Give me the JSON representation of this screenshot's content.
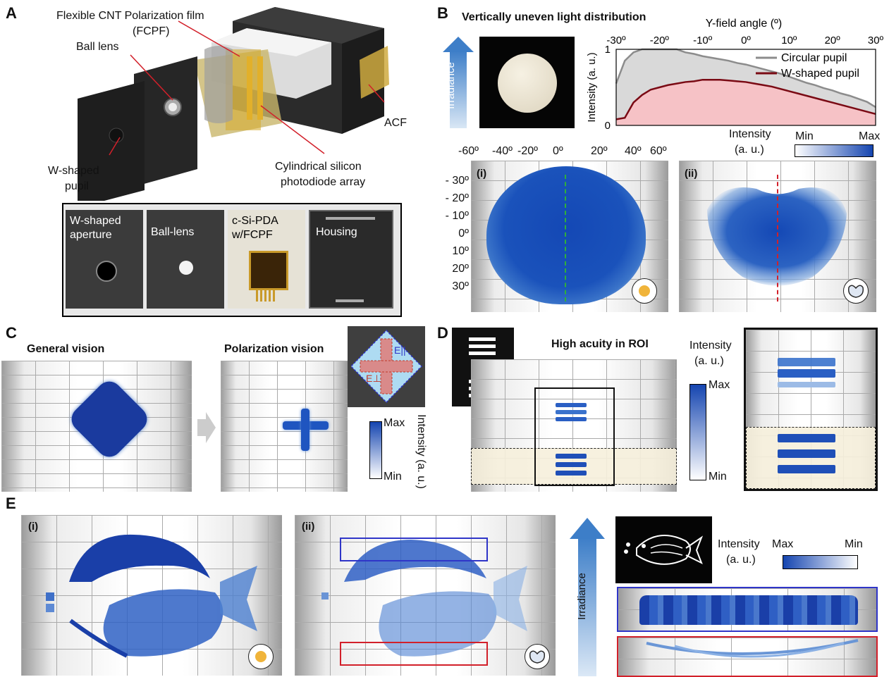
{
  "panels": {
    "A": "A",
    "B": "B",
    "C": "C",
    "D": "D",
    "E": "E"
  },
  "a": {
    "fcpf_label": "Flexible CNT Polarization film",
    "fcpf_abbr": "(FCPF)",
    "ball_lens": "Ball lens",
    "acf": "ACF",
    "pupil_line1": "W-shaped",
    "pupil_line2": "pupil",
    "pda_line1": "Cylindrical silicon",
    "pda_line2": "photodiode array",
    "photos": {
      "aperture_line1": "W-shaped",
      "aperture_line2": "aperture",
      "ball_lens": "Ball-lens",
      "pda_line1": "c-Si-PDA",
      "pda_line2": "w/FCPF",
      "housing": "Housing"
    }
  },
  "b": {
    "title": "Vertically uneven light distribution",
    "irradiance": "Irradiance",
    "intensity_label": "Intensity (a. u.)",
    "colorbar_label_line1": "Intensity",
    "colorbar_label_line2": "(a. u.)",
    "colorbar_min": "Min",
    "colorbar_max": "Max",
    "map_x_ticks": [
      "-60º",
      "-40º",
      "-20º",
      "0º",
      "20º",
      "40º",
      "60º"
    ],
    "map_y_ticks": [
      "- 30º",
      "- 20º",
      "- 10º",
      "0º",
      "10º",
      "20º",
      "30º"
    ],
    "sub_i": "(i)",
    "sub_ii": "(ii)",
    "chart_data": {
      "type": "area",
      "xlabel": "Y-field angle (º)",
      "ylabel": "Intensity (a. u.)",
      "xlim": [
        -30,
        30
      ],
      "ylim": [
        0,
        1
      ],
      "x_ticks": [
        "-30º",
        "-20º",
        "-10º",
        "0º",
        "10º",
        "20º",
        "30º"
      ],
      "y_ticks": [
        "0",
        "1"
      ],
      "x": [
        -30,
        -28,
        -26,
        -24,
        -22,
        -20,
        -18,
        -16,
        -14,
        -12,
        -10,
        -8,
        -6,
        -4,
        -2,
        0,
        2,
        4,
        6,
        8,
        10,
        12,
        14,
        16,
        18,
        20,
        22,
        24,
        26,
        28,
        30
      ],
      "series": [
        {
          "name": "Circular pupil",
          "color": "#8c8c8c",
          "fill": "#d9d9d9",
          "values": [
            0.55,
            0.85,
            0.96,
            1.0,
            1.0,
            1.0,
            1.0,
            1.0,
            0.96,
            0.94,
            0.91,
            0.89,
            0.87,
            0.85,
            0.82,
            0.8,
            0.77,
            0.74,
            0.71,
            0.68,
            0.64,
            0.6,
            0.56,
            0.53,
            0.49,
            0.46,
            0.42,
            0.39,
            0.35,
            0.31,
            0.24
          ]
        },
        {
          "name": "W-shaped pupil",
          "color": "#7a0a14",
          "fill": "#f6c2c6",
          "values": [
            0.08,
            0.1,
            0.3,
            0.4,
            0.47,
            0.5,
            0.53,
            0.55,
            0.57,
            0.58,
            0.6,
            0.6,
            0.6,
            0.59,
            0.58,
            0.57,
            0.55,
            0.53,
            0.51,
            0.48,
            0.45,
            0.42,
            0.39,
            0.36,
            0.33,
            0.3,
            0.27,
            0.24,
            0.21,
            0.18,
            0.15
          ]
        }
      ],
      "legend": "top-right"
    }
  },
  "c": {
    "general": "General vision",
    "polarization": "Polarization vision",
    "e_parallel": "E||",
    "e_perp": "E⊥",
    "colorbar_max": "Max",
    "colorbar_min": "Min",
    "colorbar_label": "Intensity (a. u.)"
  },
  "d": {
    "title": "High acuity in ROI",
    "intensity_line1": "Intensity",
    "intensity_line2": "(a. u.)",
    "colorbar_max": "Max",
    "colorbar_min": "Min"
  },
  "e": {
    "sub_i": "(i)",
    "sub_ii": "(ii)",
    "irradiance": "Irradiance",
    "intensity_line1": "Intensity",
    "intensity_line2": "(a. u.)",
    "colorbar_max": "Max",
    "colorbar_min": "Min"
  },
  "colors": {
    "map_blue": "#1545b0",
    "arrow_blue": "#3d7ec8",
    "green_line": "#2eb03a",
    "red_line": "#d2202a",
    "roi_fill": "#f6efdc",
    "frame_blue": "#2f35c8",
    "frame_red": "#d2202a"
  }
}
